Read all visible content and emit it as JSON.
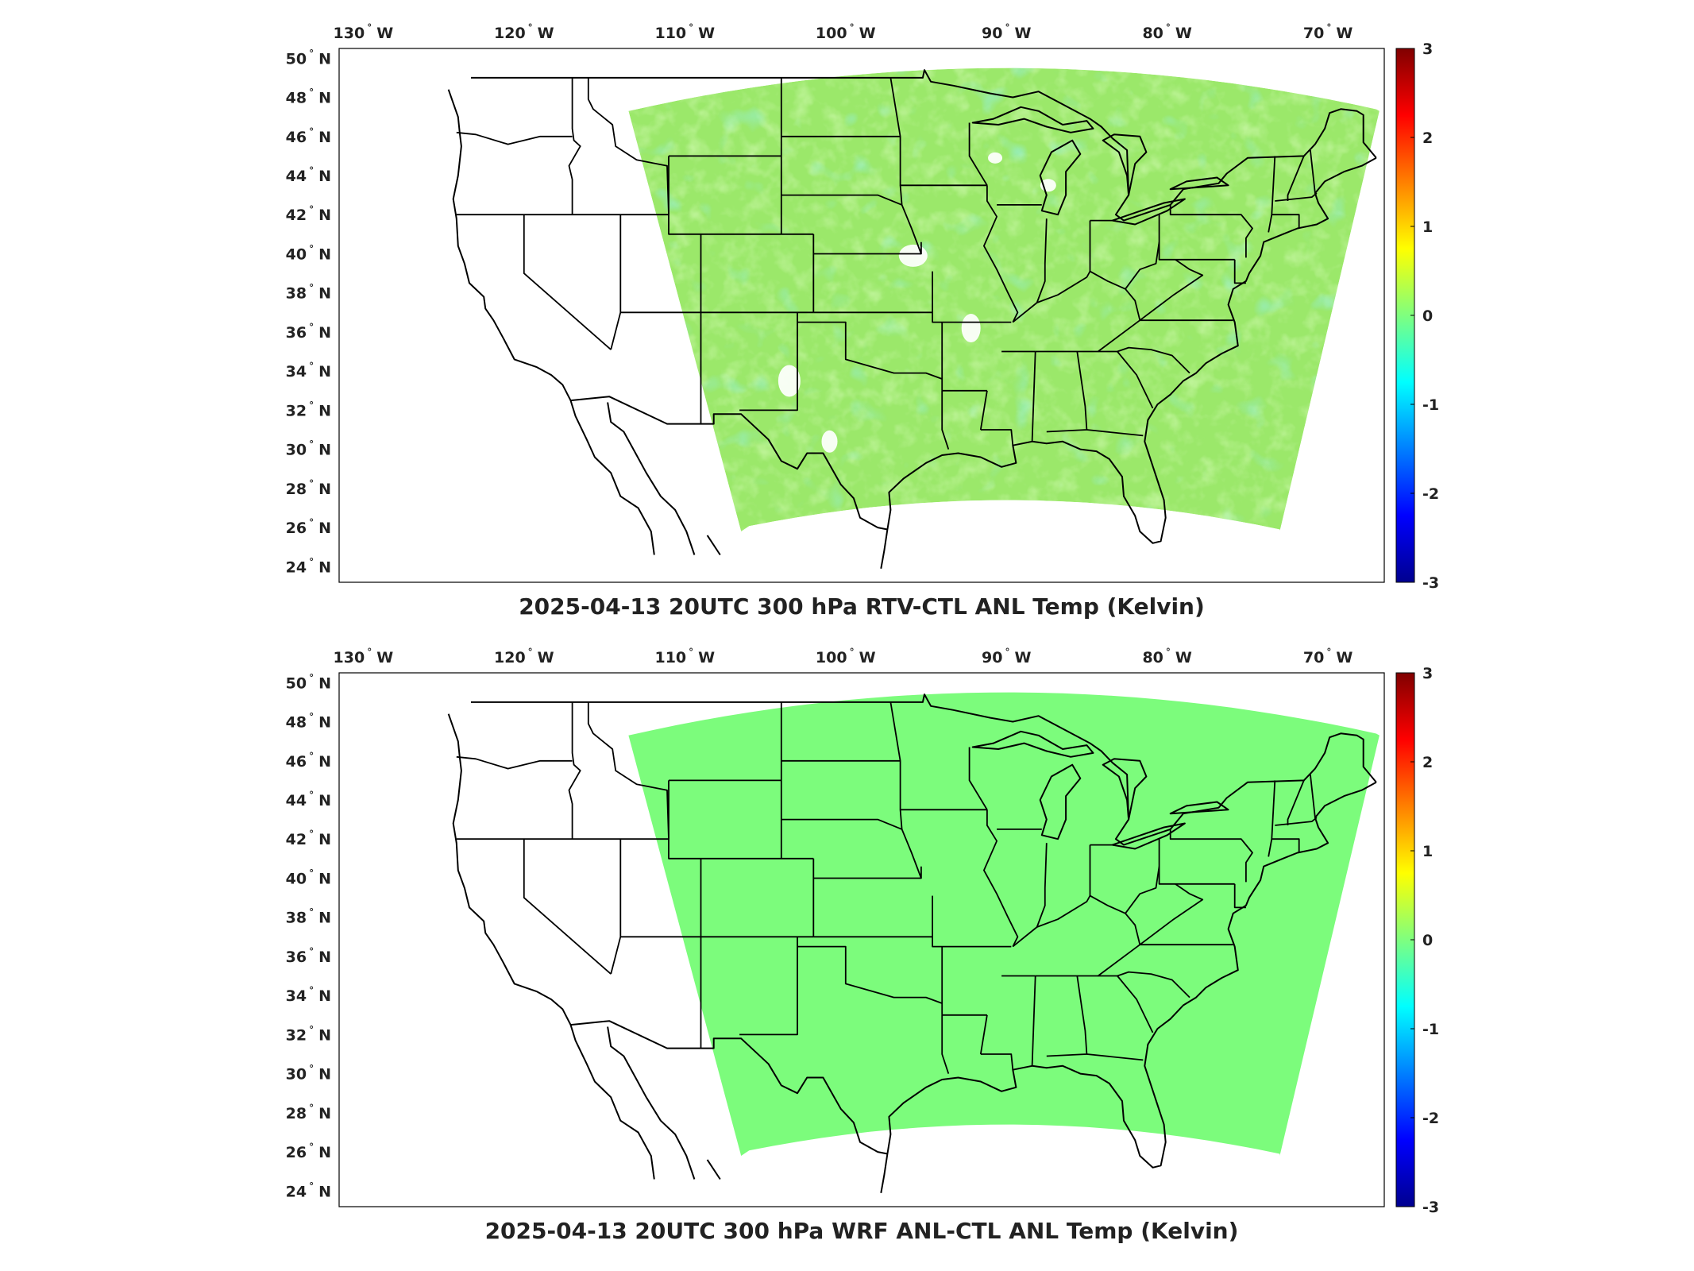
{
  "panels": [
    {
      "title": "2025-04-13 20UTC 300 hPa RTV-CTL ANL Temp (Kelvin)",
      "field": "mixed",
      "lon_labels": [
        {
          "lon": -130,
          "deg": "130",
          "dir": "W"
        },
        {
          "lon": -120,
          "deg": "120",
          "dir": "W"
        },
        {
          "lon": -110,
          "deg": "110",
          "dir": "W"
        },
        {
          "lon": -100,
          "deg": "100",
          "dir": "W"
        },
        {
          "lon": -90,
          "deg": "90",
          "dir": "W"
        },
        {
          "lon": -80,
          "deg": "80",
          "dir": "W"
        },
        {
          "lon": -70,
          "deg": "70",
          "dir": "W"
        }
      ],
      "lat_labels": [
        {
          "lat": 50,
          "deg": "50",
          "dir": "N"
        },
        {
          "lat": 48,
          "deg": "48",
          "dir": "N"
        },
        {
          "lat": 46,
          "deg": "46",
          "dir": "N"
        },
        {
          "lat": 44,
          "deg": "44",
          "dir": "N"
        },
        {
          "lat": 42,
          "deg": "42",
          "dir": "N"
        },
        {
          "lat": 40,
          "deg": "40",
          "dir": "N"
        },
        {
          "lat": 38,
          "deg": "38",
          "dir": "N"
        },
        {
          "lat": 36,
          "deg": "36",
          "dir": "N"
        },
        {
          "lat": 34,
          "deg": "34",
          "dir": "N"
        },
        {
          "lat": 32,
          "deg": "32",
          "dir": "N"
        },
        {
          "lat": 30,
          "deg": "30",
          "dir": "N"
        },
        {
          "lat": 28,
          "deg": "28",
          "dir": "N"
        },
        {
          "lat": 26,
          "deg": "26",
          "dir": "N"
        },
        {
          "lat": 24,
          "deg": "24",
          "dir": "N"
        }
      ],
      "colorbar": {
        "min": -3,
        "max": 3,
        "ticks": [
          "3",
          "2",
          "1",
          "0",
          "-1",
          "-2",
          "-3"
        ]
      }
    },
    {
      "title": "2025-04-13 20UTC 300 hPa WRF ANL-CTL ANL Temp (Kelvin)",
      "field": "uniform",
      "lon_labels": [
        {
          "lon": -130,
          "deg": "130",
          "dir": "W"
        },
        {
          "lon": -120,
          "deg": "120",
          "dir": "W"
        },
        {
          "lon": -110,
          "deg": "110",
          "dir": "W"
        },
        {
          "lon": -100,
          "deg": "100",
          "dir": "W"
        },
        {
          "lon": -90,
          "deg": "90",
          "dir": "W"
        },
        {
          "lon": -80,
          "deg": "80",
          "dir": "W"
        },
        {
          "lon": -70,
          "deg": "70",
          "dir": "W"
        }
      ],
      "lat_labels": [
        {
          "lat": 50,
          "deg": "50",
          "dir": "N"
        },
        {
          "lat": 48,
          "deg": "48",
          "dir": "N"
        },
        {
          "lat": 46,
          "deg": "46",
          "dir": "N"
        },
        {
          "lat": 44,
          "deg": "44",
          "dir": "N"
        },
        {
          "lat": 42,
          "deg": "42",
          "dir": "N"
        },
        {
          "lat": 40,
          "deg": "40",
          "dir": "N"
        },
        {
          "lat": 38,
          "deg": "38",
          "dir": "N"
        },
        {
          "lat": 36,
          "deg": "36",
          "dir": "N"
        },
        {
          "lat": 34,
          "deg": "34",
          "dir": "N"
        },
        {
          "lat": 32,
          "deg": "32",
          "dir": "N"
        },
        {
          "lat": 30,
          "deg": "30",
          "dir": "N"
        },
        {
          "lat": 28,
          "deg": "28",
          "dir": "N"
        },
        {
          "lat": 26,
          "deg": "26",
          "dir": "N"
        },
        {
          "lat": 24,
          "deg": "24",
          "dir": "N"
        }
      ],
      "colorbar": {
        "min": -3,
        "max": 3,
        "ticks": [
          "3",
          "2",
          "1",
          "0",
          "-1",
          "-2",
          "-3"
        ]
      }
    }
  ],
  "colors": {
    "field_uniform": "#7cfc7c",
    "field_base": "#9be86a",
    "field_warm": "#d8f040",
    "field_cool": "#4fe0c0",
    "map_lines": "#000000"
  }
}
